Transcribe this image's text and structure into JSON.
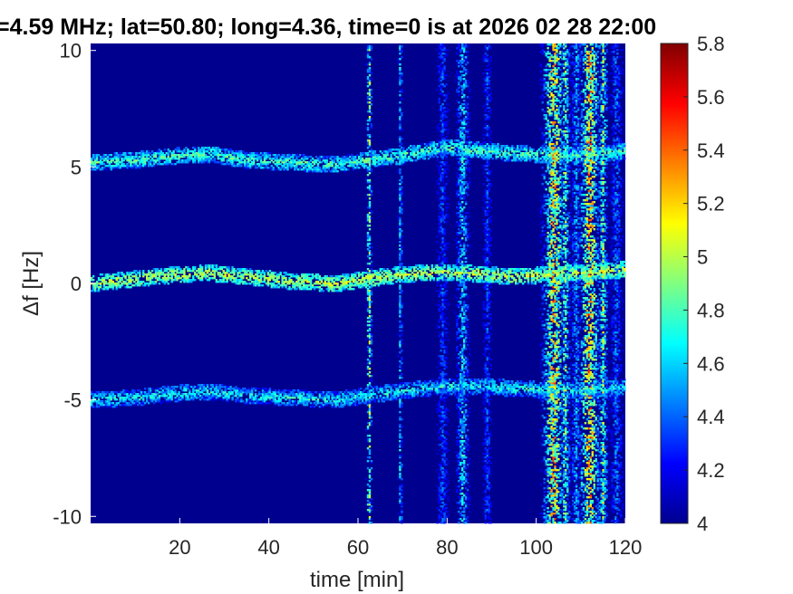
{
  "chart_data": {
    "type": "heatmap",
    "title": "=4.59 MHz;  lat=50.80; long=4.36, time=0 is at 2026 02 28 22:00",
    "xlabel": "time [min]",
    "ylabel": "Δf [Hz]",
    "xlim": [
      0,
      120
    ],
    "ylim": [
      -10.3,
      10.3
    ],
    "x_ticks": [
      20,
      40,
      60,
      80,
      100,
      120
    ],
    "x_tick_labels": [
      "20",
      "40",
      "60",
      "80",
      "100",
      "120"
    ],
    "y_ticks": [
      -10,
      -5,
      0,
      5,
      10
    ],
    "y_tick_labels": [
      "-10",
      "-5",
      "0",
      "5",
      "10"
    ],
    "colorbar": {
      "range": [
        4,
        5.8
      ],
      "ticks": [
        4,
        4.2,
        4.4,
        4.6,
        4.8,
        5,
        5.2,
        5.4,
        5.6,
        5.8
      ],
      "tick_labels": [
        "4",
        "4.2",
        "4.4",
        "4.6",
        "4.8",
        "5",
        "5.2",
        "5.4",
        "5.6",
        "5.8"
      ],
      "colormap": "jet"
    },
    "background_level": 4.0,
    "traces": [
      {
        "name": "upper",
        "points": [
          [
            0,
            5.2
          ],
          [
            10,
            5.3
          ],
          [
            20,
            5.5
          ],
          [
            27,
            5.55
          ],
          [
            35,
            5.3
          ],
          [
            45,
            5.2
          ],
          [
            55,
            5.1
          ],
          [
            62,
            5.3
          ],
          [
            70,
            5.5
          ],
          [
            80,
            5.85
          ],
          [
            88,
            5.7
          ],
          [
            95,
            5.6
          ],
          [
            105,
            5.5
          ],
          [
            113,
            5.5
          ],
          [
            120,
            5.7
          ]
        ],
        "level": 4.8
      },
      {
        "name": "middle",
        "points": [
          [
            0,
            0.0
          ],
          [
            10,
            0.2
          ],
          [
            20,
            0.4
          ],
          [
            27,
            0.45
          ],
          [
            35,
            0.3
          ],
          [
            45,
            0.1
          ],
          [
            55,
            0.0
          ],
          [
            62,
            0.2
          ],
          [
            70,
            0.4
          ],
          [
            80,
            0.5
          ],
          [
            88,
            0.4
          ],
          [
            95,
            0.3
          ],
          [
            105,
            0.4
          ],
          [
            113,
            0.5
          ],
          [
            120,
            0.6
          ]
        ],
        "level": 5.0
      },
      {
        "name": "lower",
        "points": [
          [
            0,
            -5.0
          ],
          [
            10,
            -4.9
          ],
          [
            20,
            -4.7
          ],
          [
            27,
            -4.65
          ],
          [
            35,
            -4.8
          ],
          [
            45,
            -4.9
          ],
          [
            55,
            -5.0
          ],
          [
            62,
            -4.8
          ],
          [
            70,
            -4.6
          ],
          [
            80,
            -4.4
          ],
          [
            88,
            -4.4
          ],
          [
            95,
            -4.5
          ],
          [
            105,
            -4.6
          ],
          [
            113,
            -4.55
          ],
          [
            120,
            -4.4
          ]
        ],
        "level": 4.7
      }
    ],
    "vertical_features": [
      {
        "t": 62.5,
        "width": 0.8,
        "level": 5.3
      },
      {
        "t": 69.5,
        "width": 0.6,
        "level": 4.9
      },
      {
        "t": 79.0,
        "width": 2.0,
        "level": 4.5
      },
      {
        "t": 83.5,
        "width": 2.0,
        "level": 4.9
      },
      {
        "t": 89.0,
        "width": 1.5,
        "level": 4.5
      },
      {
        "t": 104.0,
        "width": 3.5,
        "level": 5.6
      },
      {
        "t": 106.5,
        "width": 1.5,
        "level": 5.2
      },
      {
        "t": 109.0,
        "width": 2.0,
        "level": 4.7
      },
      {
        "t": 112.0,
        "width": 3.0,
        "level": 5.7
      },
      {
        "t": 115.0,
        "width": 1.5,
        "level": 5.2
      },
      {
        "t": 118.0,
        "width": 2.0,
        "level": 4.6
      }
    ]
  }
}
